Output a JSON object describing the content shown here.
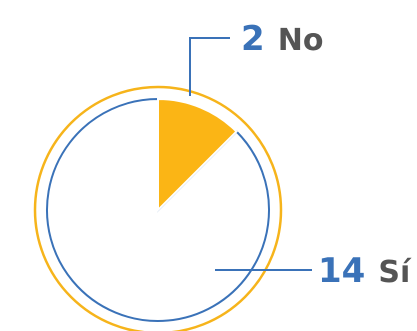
{
  "chart_data": {
    "type": "pie",
    "title": "",
    "slices": [
      {
        "label": "No",
        "value": 2,
        "value_text": "2",
        "fill": "#FBB515",
        "stroke": "#FFFFFF"
      },
      {
        "label": "Sí",
        "value": 14,
        "value_text": "14",
        "fill": "#FFFFFF",
        "stroke": "#3A72B8"
      }
    ],
    "outer_ring_color": "#F6B41B",
    "value_text_color": "#3A72B8",
    "label_text_color": "#555555",
    "callout_line_color": "#3A72B8",
    "legend": "none"
  }
}
